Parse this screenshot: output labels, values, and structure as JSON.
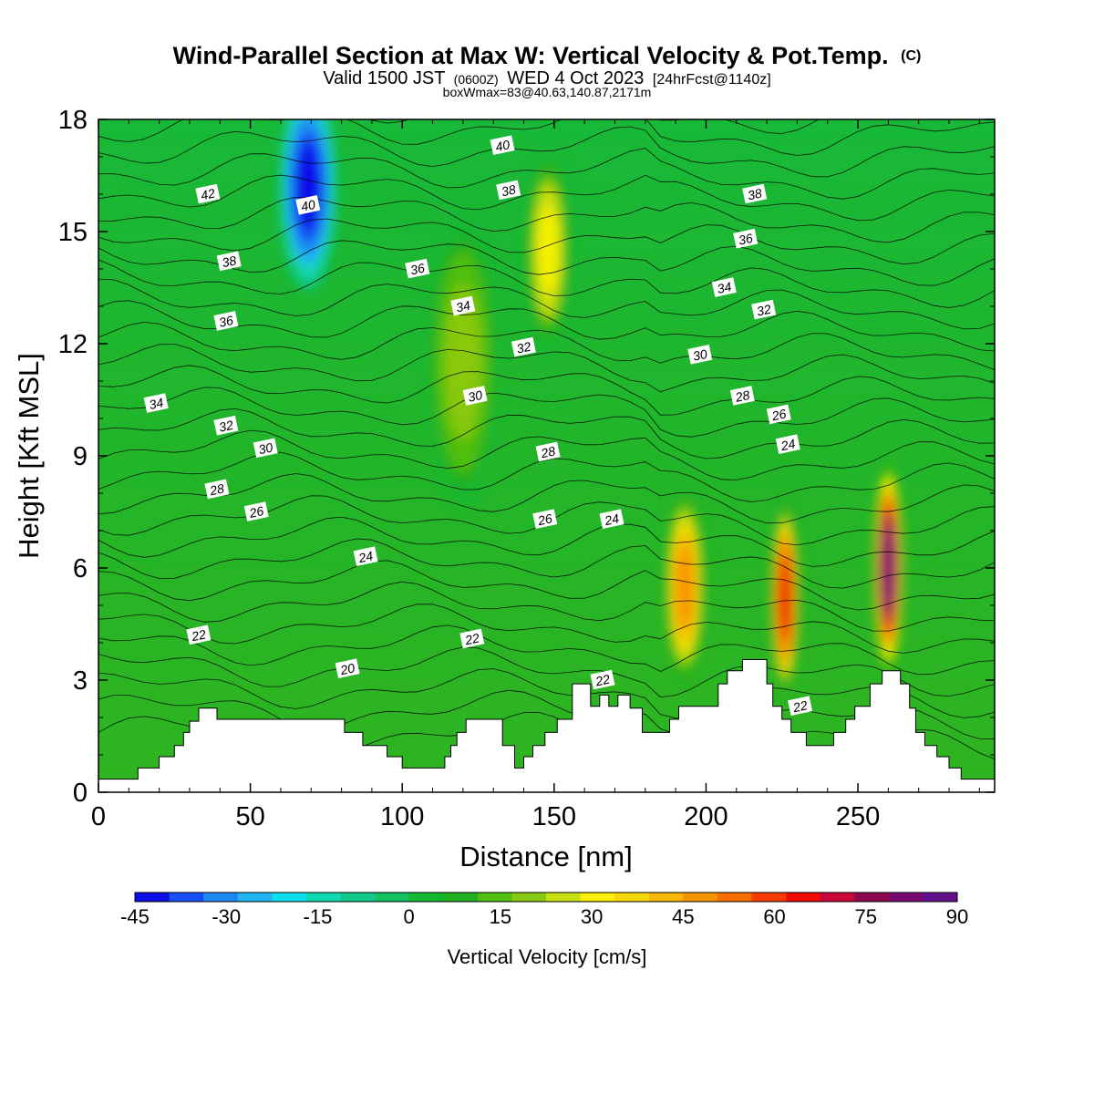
{
  "title": {
    "main": "Wind-Parallel Section at Max W: Vertical Velocity & Pot.Temp.",
    "copyright": "(C)",
    "valid_prefix": "Valid 1500 JST",
    "valid_utc": "(0600Z)",
    "valid_date": "WED 4 Oct 2023",
    "forecast": "[24hrFcst@1140z]",
    "box": "boxWmax=83@40.63,140.87,2171m"
  },
  "chart_data": {
    "type": "heatmap",
    "title": "Wind-Parallel Section at Max W: Vertical Velocity & Pot.Temp.",
    "xlabel": "Distance [nm]",
    "ylabel": "Height [Kft MSL]",
    "xlim": [
      0,
      295
    ],
    "ylim": [
      0,
      18
    ],
    "x_ticks": [
      0,
      50,
      100,
      150,
      200,
      250
    ],
    "y_ticks": [
      0,
      3,
      6,
      9,
      12,
      15,
      18
    ],
    "colorbar": {
      "label": "Vertical Velocity [cm/s]",
      "ticks": [
        -45,
        -30,
        -15,
        0,
        15,
        30,
        45,
        60,
        75,
        90
      ],
      "min": -45,
      "max": 90,
      "colors": [
        "#0a10e8",
        "#1650f5",
        "#1c88f2",
        "#20b4f0",
        "#0ce0f0",
        "#12d8b0",
        "#10c888",
        "#12c060",
        "#14b830",
        "#20b020",
        "#50be10",
        "#88c810",
        "#c8e010",
        "#f8f000",
        "#f8d800",
        "#f8b800",
        "#f89400",
        "#f86c00",
        "#f83c00",
        "#f00a00",
        "#c80838",
        "#900850",
        "#7a0870",
        "#60108c"
      ]
    },
    "velocity_maxima": [
      {
        "x": 69,
        "y": 16.2,
        "w": -42
      },
      {
        "x": 120,
        "y": 11.5,
        "w": 22
      },
      {
        "x": 148,
        "y": 14.5,
        "w": 30
      },
      {
        "x": 193,
        "y": 5.5,
        "w": 45
      },
      {
        "x": 226,
        "y": 5.2,
        "w": 62
      },
      {
        "x": 260,
        "y": 6.0,
        "w": 83
      }
    ],
    "theta_labels": [
      {
        "x": 36,
        "y": 16.0,
        "text": "42"
      },
      {
        "x": 69,
        "y": 15.7,
        "text": "40"
      },
      {
        "x": 133,
        "y": 17.3,
        "text": "40"
      },
      {
        "x": 135,
        "y": 16.1,
        "text": "38"
      },
      {
        "x": 216,
        "y": 16.0,
        "text": "38"
      },
      {
        "x": 43,
        "y": 14.2,
        "text": "38"
      },
      {
        "x": 213,
        "y": 14.8,
        "text": "36"
      },
      {
        "x": 105,
        "y": 14.0,
        "text": "36"
      },
      {
        "x": 42,
        "y": 12.6,
        "text": "36"
      },
      {
        "x": 120,
        "y": 13.0,
        "text": "34"
      },
      {
        "x": 206,
        "y": 13.5,
        "text": "34"
      },
      {
        "x": 19,
        "y": 10.4,
        "text": "34"
      },
      {
        "x": 219,
        "y": 12.9,
        "text": "32"
      },
      {
        "x": 140,
        "y": 11.9,
        "text": "32"
      },
      {
        "x": 42,
        "y": 9.8,
        "text": "32"
      },
      {
        "x": 198,
        "y": 11.7,
        "text": "30"
      },
      {
        "x": 124,
        "y": 10.6,
        "text": "30"
      },
      {
        "x": 55,
        "y": 9.2,
        "text": "30"
      },
      {
        "x": 212,
        "y": 10.6,
        "text": "28"
      },
      {
        "x": 148,
        "y": 9.1,
        "text": "28"
      },
      {
        "x": 39,
        "y": 8.1,
        "text": "28"
      },
      {
        "x": 224,
        "y": 10.1,
        "text": "26"
      },
      {
        "x": 147,
        "y": 7.3,
        "text": "26"
      },
      {
        "x": 52,
        "y": 7.5,
        "text": "26"
      },
      {
        "x": 227,
        "y": 9.3,
        "text": "24"
      },
      {
        "x": 169,
        "y": 7.3,
        "text": "24"
      },
      {
        "x": 88,
        "y": 6.3,
        "text": "24"
      },
      {
        "x": 33,
        "y": 4.2,
        "text": "22"
      },
      {
        "x": 123,
        "y": 4.1,
        "text": "22"
      },
      {
        "x": 166,
        "y": 3.0,
        "text": "22"
      },
      {
        "x": 231,
        "y": 2.3,
        "text": "22"
      },
      {
        "x": 82,
        "y": 3.3,
        "text": "20"
      }
    ]
  }
}
